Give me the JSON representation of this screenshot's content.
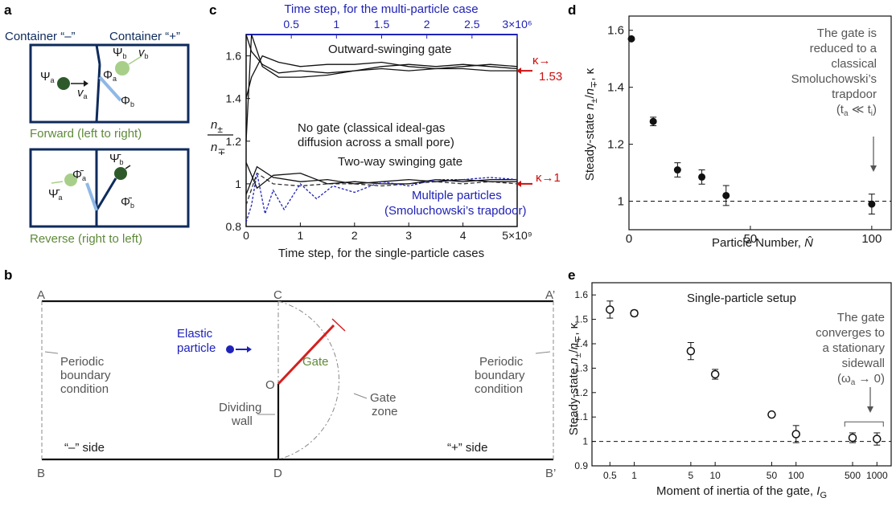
{
  "panels": {
    "a": {
      "letter": "a",
      "container_minus": "Container “–”",
      "container_plus": "Container “+”",
      "psi_a": "Ψ",
      "psi_b": "Ψ",
      "sub_a": "a",
      "sub_b": "b",
      "v_a": "v",
      "v_b": "v",
      "phi_a": "Φ",
      "phi_b": "Φ",
      "forward_caption": "Forward (left to right)",
      "reverse_caption": "Reverse (right to left)",
      "psi_a_bar": "Ψ̄",
      "psi_b_bar": "Ψ̄",
      "phi_a_bar": "Φ̄",
      "phi_b_bar": "Φ̄",
      "colors": {
        "navy": "#0e2b5c",
        "dark_green": "#2e5a2b",
        "light_green": "#a8cf8a",
        "light_blue": "#8fb8e6",
        "caption_green": "#5f8a3a"
      }
    },
    "b": {
      "letter": "b",
      "corner_A": "A",
      "corner_A_prime": "A’",
      "corner_B": "B",
      "corner_B_prime": "B’",
      "corner_C": "C",
      "corner_D": "D",
      "point_O": "O",
      "elastic_particle_line1": "Elastic",
      "elastic_particle_line2": "particle",
      "gate_label": "Gate",
      "left_boundary_line1": "Periodic",
      "left_boundary_line2": "boundary",
      "left_boundary_line3": "condition",
      "right_boundary_line1": "Periodic",
      "right_boundary_line2": "boundary",
      "right_boundary_line3": "condition",
      "dividing_wall_line1": "Dividing",
      "dividing_wall_line2": "wall",
      "gate_zone_line1": "Gate",
      "gate_zone_line2": "zone",
      "minus_side": "“–” side",
      "plus_side": "“+” side",
      "colors": {
        "gate": "#d42020",
        "particle": "#1f22b8"
      }
    }
  },
  "chart_data": [
    {
      "id": "c",
      "type": "line",
      "letter": "c",
      "xlabel_bottom": "Time step, for the single-particle cases",
      "xlabel_top": "Time step, for the multi-particle case",
      "ylabel_num": "n",
      "ylabel_num_sub": "±",
      "ylabel_den": "n",
      "ylabel_den_sub": "∓",
      "xlim": [
        0,
        5
      ],
      "xlim_top": [
        0,
        3
      ],
      "ylim": [
        0.8,
        1.7
      ],
      "x_ticks": [
        "0",
        "1",
        "2",
        "3",
        "4",
        "5×10⁹"
      ],
      "x_ticks_top": [
        "0.5",
        "1",
        "1.5",
        "2",
        "2.5",
        "3×10⁶"
      ],
      "y_ticks": [
        "0.8",
        "1",
        "1.2",
        "1.4",
        "1.6"
      ],
      "annotations": {
        "outward": "Outward-swinging gate",
        "no_gate_line1": "No gate (classical ideal-gas",
        "no_gate_line2": "diffusion across a small pore)",
        "two_way": "Two-way swinging gate",
        "multi_line1": "Multiple particles",
        "multi_line2": "(Smoluchowski’s trapdoor)",
        "kappa_153_a": "κ→",
        "kappa_153_b": "1.53",
        "kappa_1": "κ→1"
      },
      "series": [
        {
          "name": "Outward-swinging gate",
          "color": "#111111",
          "x": [
            0,
            0.1,
            0.3,
            0.6,
            1.0,
            1.5,
            2.0,
            2.5,
            3.0,
            3.5,
            4.0,
            4.5,
            5.0
          ],
          "runs": [
            [
              1.7,
              1.62,
              1.56,
              1.52,
              1.53,
              1.52,
              1.53,
              1.55,
              1.56,
              1.55,
              1.56,
              1.55,
              1.54
            ],
            [
              1.4,
              1.5,
              1.6,
              1.57,
              1.55,
              1.56,
              1.56,
              1.57,
              1.55,
              1.54,
              1.55,
              1.56,
              1.55
            ],
            [
              1.2,
              1.7,
              1.55,
              1.5,
              1.5,
              1.51,
              1.53,
              1.54,
              1.53,
              1.54,
              1.54,
              1.53,
              1.53
            ]
          ]
        },
        {
          "name": "No gate (classical ideal-gas diffusion across a small pore)",
          "color": "#333333",
          "dash": "5 3",
          "x": [
            0,
            0.2,
            0.5,
            1.0,
            1.5,
            2.0,
            2.5,
            3.0,
            3.5,
            4.0,
            4.5,
            5.0
          ],
          "values": [
            0.9,
            1.05,
            1.0,
            0.99,
            1.0,
            1.0,
            0.99,
            1.0,
            1.01,
            1.0,
            1.01,
            1.0
          ]
        },
        {
          "name": "Two-way swinging gate",
          "color": "#111111",
          "x": [
            0,
            0.2,
            0.5,
            1.0,
            1.5,
            2.0,
            2.5,
            3.0,
            3.5,
            4.0,
            4.5,
            5.0
          ],
          "runs": [
            [
              0.95,
              1.08,
              1.03,
              1.01,
              1.02,
              1.0,
              1.01,
              1.02,
              1.01,
              1.02,
              1.01,
              1.01
            ],
            [
              1.1,
              0.98,
              1.04,
              1.05,
              1.0,
              1.01,
              1.0,
              1.0,
              1.02,
              1.01,
              1.02,
              1.02
            ]
          ]
        },
        {
          "name": "Multiple particles (Smoluchowski’s trapdoor)",
          "color": "#1f22b8",
          "dash": "3 2",
          "x": [
            0,
            0.1,
            0.2,
            0.35,
            0.5,
            0.7,
            1.0,
            1.3,
            1.6,
            2.0,
            2.5,
            3.0,
            3.5,
            4.0,
            4.5,
            5.0
          ],
          "values": [
            0.82,
            0.9,
            1.05,
            0.86,
            0.97,
            0.88,
            1.0,
            0.93,
            0.99,
            0.96,
            1.01,
            0.99,
            1.02,
            1.02,
            1.03,
            1.02
          ]
        }
      ]
    },
    {
      "id": "d",
      "type": "scatter",
      "letter": "d",
      "xlabel": "Particle Number, ",
      "xlabel_symbol": "N̂",
      "ylabel_prefix": "Steady-state ",
      "ylabel_frac": "n",
      "ylabel_sub1": "±",
      "ylabel_slash": "/",
      "ylabel_sub2": "∓",
      "ylabel_suffix": ", κ",
      "xlim": [
        0,
        108
      ],
      "ylim": [
        0.9,
        1.65
      ],
      "x_ticks": [
        "0",
        "50",
        "100"
      ],
      "y_ticks": [
        "1",
        "1.2",
        "1.4",
        "1.6"
      ],
      "reference_y": 1.0,
      "note": [
        "The gate is",
        "reduced to a",
        "classical",
        "Smoluchowski’s",
        "trapdoor"
      ],
      "note_last": "(t",
      "note_last_sub1": "a",
      "note_last_mid": " ≪ t",
      "note_last_sub2": "i",
      "note_last_end": ")",
      "points": [
        {
          "x": 1,
          "y": 1.57,
          "err": 0.0
        },
        {
          "x": 10,
          "y": 1.28,
          "err": 0.015
        },
        {
          "x": 20,
          "y": 1.11,
          "err": 0.025
        },
        {
          "x": 30,
          "y": 1.085,
          "err": 0.025
        },
        {
          "x": 40,
          "y": 1.02,
          "err": 0.035
        },
        {
          "x": 100,
          "y": 0.99,
          "err": 0.035
        }
      ]
    },
    {
      "id": "e",
      "type": "scatter",
      "letter": "e",
      "title": "Single-particle setup",
      "xlabel": "Moment of inertia of the gate, ",
      "xlabel_symbol": "I",
      "xlabel_sub": "G",
      "ylabel_prefix": "Steady-state ",
      "ylabel_frac": "n",
      "ylabel_sub1": "±",
      "ylabel_slash": "/",
      "ylabel_sub2": "∓",
      "ylabel_suffix": ", κ",
      "x_scale": "log",
      "xlim": [
        0.3,
        1500
      ],
      "ylim": [
        0.9,
        1.65
      ],
      "x_ticks": [
        "0.5",
        "1",
        "5",
        "10",
        "50",
        "100",
        "500",
        "1000"
      ],
      "x_tick_values": [
        0.5,
        1,
        5,
        10,
        50,
        100,
        500,
        1000
      ],
      "y_ticks": [
        "0.9",
        "1",
        "1.1",
        "1.2",
        "1.3",
        "1.4",
        "1.5",
        "1.6"
      ],
      "reference_y": 1.0,
      "note": [
        "The gate",
        "converges to",
        "a stationary",
        "sidewall"
      ],
      "note_last": "(ω",
      "note_last_sub": "a",
      "note_last_end": " → 0)",
      "points": [
        {
          "x": 0.5,
          "y": 1.54,
          "err": 0.035
        },
        {
          "x": 1,
          "y": 1.525,
          "err": 0.012
        },
        {
          "x": 5,
          "y": 1.37,
          "err": 0.035
        },
        {
          "x": 10,
          "y": 1.275,
          "err": 0.02
        },
        {
          "x": 50,
          "y": 1.11,
          "err": 0.008
        },
        {
          "x": 100,
          "y": 1.03,
          "err": 0.035
        },
        {
          "x": 500,
          "y": 1.015,
          "err": 0.02
        },
        {
          "x": 1000,
          "y": 1.01,
          "err": 0.025
        }
      ]
    }
  ]
}
